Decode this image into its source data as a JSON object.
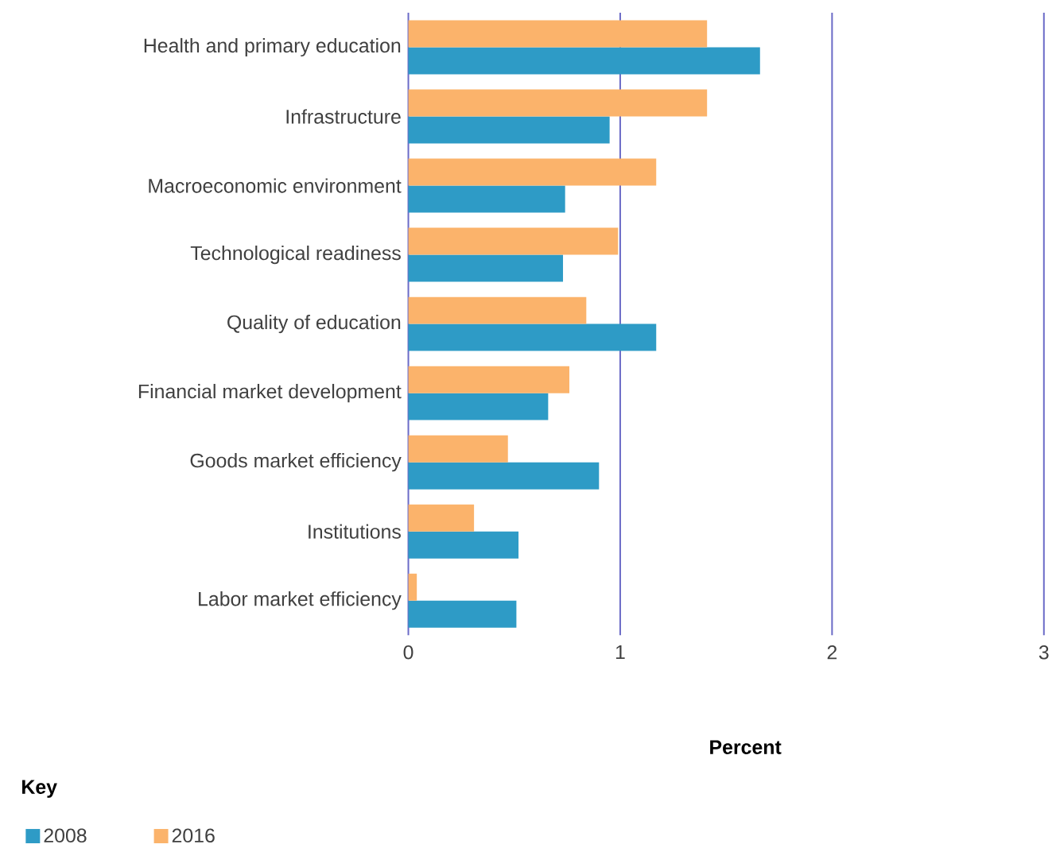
{
  "chart_data": {
    "type": "bar",
    "orientation": "horizontal",
    "xlabel": "Percent",
    "legend_title": "Key",
    "legend": "bottom left",
    "grid": "x",
    "categories": [
      "Health and primary education",
      "Infrastructure",
      "Macroeconomic environment",
      "Technological readiness",
      "Quality of education",
      "Financial market development",
      "Goods market efficiency",
      "Institutions",
      "Labor market efficiency"
    ],
    "series": [
      {
        "name": "2008",
        "color": "#2e9bc6",
        "values": [
          1.66,
          0.95,
          0.74,
          0.73,
          1.17,
          0.66,
          0.9,
          0.52,
          0.51
        ]
      },
      {
        "name": "2016",
        "color": "#fbb36b",
        "values": [
          1.41,
          1.41,
          1.17,
          0.99,
          0.84,
          0.76,
          0.47,
          0.31,
          0.04
        ]
      }
    ],
    "xlim": [
      0,
      3
    ],
    "xticks": [
      0,
      1,
      2,
      3
    ]
  }
}
